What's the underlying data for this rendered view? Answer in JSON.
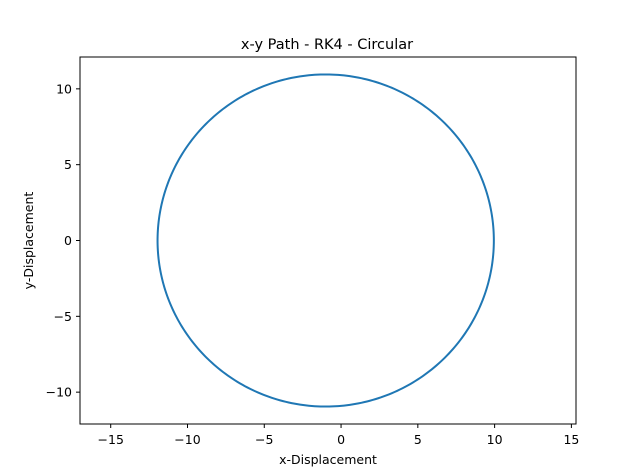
{
  "chart_data": {
    "type": "line",
    "title": "x-y Path - RK4 - Circular",
    "xlabel": "x-Displacement",
    "ylabel": "y-Displacement",
    "xlim": [
      -17,
      15.3
    ],
    "ylim": [
      -12.1,
      12.1
    ],
    "xticks": [
      -15,
      -10,
      -5,
      0,
      5,
      10,
      15
    ],
    "yticks": [
      -10,
      -5,
      0,
      5,
      10
    ],
    "xtick_labels": [
      "−15",
      "−10",
      "−5",
      "0",
      "5",
      "10",
      "15"
    ],
    "ytick_labels": [
      "−10",
      "−5",
      "0",
      "5",
      "10"
    ],
    "grid": false,
    "legend": "none",
    "line_color": "#1f77b4",
    "series": [
      {
        "shape": "circle",
        "center": [
          -1,
          0
        ],
        "radius": 10.95,
        "points": 361
      }
    ]
  }
}
